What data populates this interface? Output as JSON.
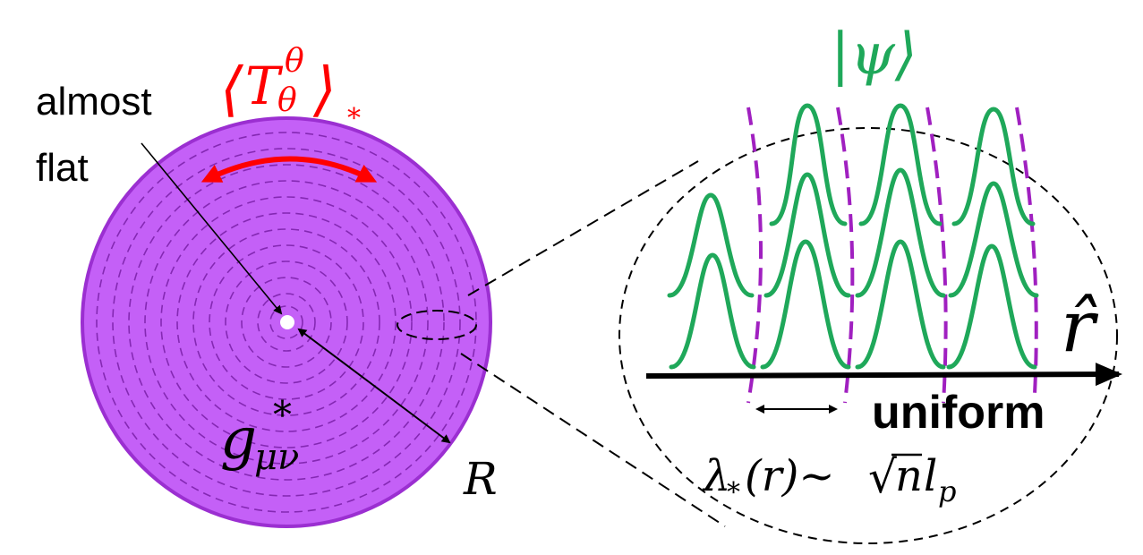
{
  "labels": {
    "almost": "almost",
    "flat": "flat",
    "radius": "R",
    "metric": "g",
    "metric_sub": "μν",
    "metric_sup": "*",
    "stress_open": "⟨",
    "stress_T": "T",
    "stress_sup": "θ",
    "stress_sub": "θ",
    "stress_close": "⟩",
    "stress_star": "*",
    "state": "|ψ⟩",
    "axis": "r̂",
    "uniform": "uniform",
    "wavelength_lambda": "λ",
    "wavelength_sub": "*",
    "wavelength_rest": "(r)~",
    "wavelength_sqrt": "√",
    "wavelength_n": "n",
    "wavelength_l": "l",
    "wavelength_p": "p"
  },
  "colors": {
    "disk_fill": "#c460f7",
    "disk_stroke": "#9b2fd1",
    "ring_dash": "#7a1fa8",
    "stress_red": "#ff0000",
    "wave_green": "#1fa85a",
    "divider_purple": "#a020c0",
    "black": "#000000"
  }
}
